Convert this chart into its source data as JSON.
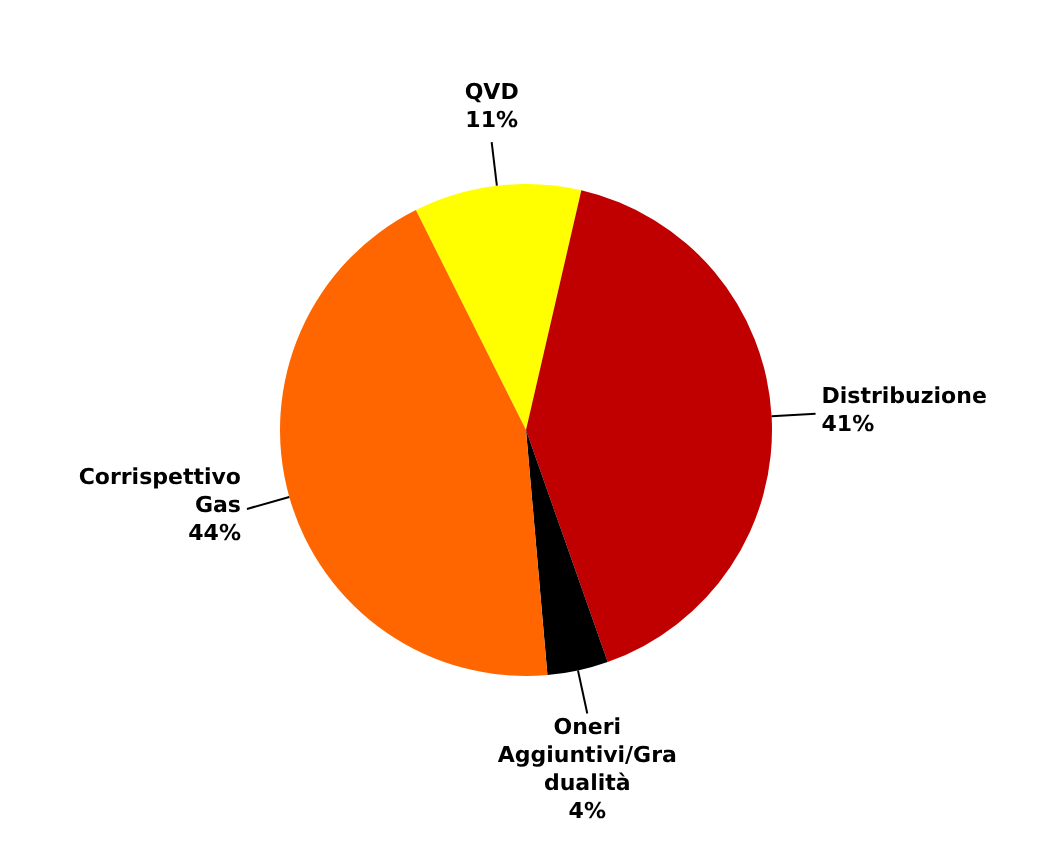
{
  "chart_data": {
    "type": "pie",
    "categories": [
      "QVD",
      "Distribuzione",
      "Oneri Aggiuntivi/Gradualità",
      "Corrispettivo Gas"
    ],
    "values": [
      11,
      41,
      4,
      44
    ],
    "colors": [
      "#ffff00",
      "#c00000",
      "#000000",
      "#ff6600"
    ],
    "value_labels": [
      "11%",
      "41%",
      "4%",
      "44%"
    ],
    "legend": false
  }
}
